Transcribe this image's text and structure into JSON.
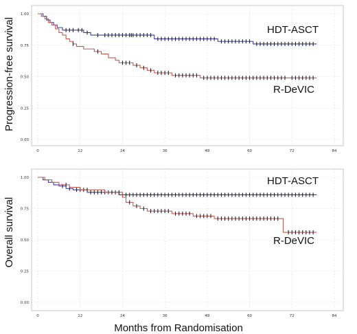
{
  "chart_data": [
    {
      "type": "line",
      "ylabel": "Progression-free survival",
      "xlabel": "",
      "xlim": [
        0,
        84
      ],
      "ylim": [
        0,
        1
      ],
      "x_ticks": [
        "0",
        "12",
        "24",
        "36",
        "48",
        "60",
        "72",
        "84"
      ],
      "y_ticks": [
        "0.00",
        "0.25",
        "0.50",
        "0.75",
        "1.00"
      ],
      "grid": true,
      "series": [
        {
          "name": "HDT-ASCT",
          "color": "#3b3b9a",
          "steps": [
            [
              0,
              1.0
            ],
            [
              1.5,
              0.98
            ],
            [
              2.5,
              0.95
            ],
            [
              3.5,
              0.93
            ],
            [
              4.5,
              0.91
            ],
            [
              5.5,
              0.89
            ],
            [
              7,
              0.87
            ],
            [
              13,
              0.85
            ],
            [
              15,
              0.83
            ],
            [
              33,
              0.8
            ],
            [
              51,
              0.78
            ],
            [
              61,
              0.76
            ],
            [
              79,
              0.76
            ]
          ],
          "censor": [
            8,
            9,
            10,
            11.5,
            12.5,
            14,
            17,
            19,
            20,
            21,
            22,
            23,
            24,
            25,
            26,
            26.5,
            27,
            28,
            29,
            30,
            31,
            32,
            34,
            35,
            36,
            37,
            38,
            39,
            40,
            41,
            42,
            43,
            44,
            45,
            46,
            47,
            48,
            49,
            50,
            52,
            53,
            54,
            55,
            56,
            57,
            58,
            59,
            60,
            62,
            63,
            64,
            65,
            66,
            67,
            68,
            69,
            70,
            71,
            72,
            73,
            74,
            75,
            76,
            77,
            78
          ]
        },
        {
          "name": "R-DeVIC",
          "color": "#c25a4e",
          "steps": [
            [
              0,
              1.0
            ],
            [
              1,
              0.98
            ],
            [
              2,
              0.96
            ],
            [
              3,
              0.93
            ],
            [
              4,
              0.91
            ],
            [
              5,
              0.88
            ],
            [
              6,
              0.85
            ],
            [
              7,
              0.83
            ],
            [
              8,
              0.8
            ],
            [
              9,
              0.78
            ],
            [
              10,
              0.76
            ],
            [
              11,
              0.74
            ],
            [
              13,
              0.72
            ],
            [
              16,
              0.7
            ],
            [
              18,
              0.68
            ],
            [
              20,
              0.65
            ],
            [
              22,
              0.63
            ],
            [
              23,
              0.61
            ],
            [
              27,
              0.59
            ],
            [
              29,
              0.57
            ],
            [
              31,
              0.55
            ],
            [
              33,
              0.53
            ],
            [
              38,
              0.51
            ],
            [
              46,
              0.49
            ],
            [
              79,
              0.49
            ]
          ],
          "censor": [
            10,
            17,
            24,
            25,
            26,
            28,
            30,
            32,
            34,
            35,
            36,
            37,
            39,
            40,
            41,
            42,
            43,
            44,
            45,
            47,
            48,
            49,
            50,
            51,
            52,
            53,
            54,
            55,
            56,
            57,
            58,
            59,
            60,
            61,
            62,
            63,
            64,
            65,
            66,
            67,
            68,
            69,
            70,
            72,
            73,
            74,
            75,
            76,
            77,
            78
          ]
        }
      ]
    },
    {
      "type": "line",
      "ylabel": "Overall survival",
      "xlabel": "Months from Randomisation",
      "xlim": [
        0,
        84
      ],
      "ylim": [
        0,
        1
      ],
      "x_ticks": [
        "0",
        "12",
        "24",
        "36",
        "48",
        "60",
        "72",
        "84"
      ],
      "y_ticks": [
        "0.00",
        "0.25",
        "0.50",
        "0.75",
        "1.00"
      ],
      "grid": true,
      "series": [
        {
          "name": "HDT-ASCT",
          "color": "#3b3b9a",
          "steps": [
            [
              0,
              1.0
            ],
            [
              1.5,
              0.98
            ],
            [
              3,
              0.96
            ],
            [
              4.5,
              0.94
            ],
            [
              6,
              0.93
            ],
            [
              8,
              0.91
            ],
            [
              10,
              0.9
            ],
            [
              14,
              0.88
            ],
            [
              23,
              0.86
            ],
            [
              79,
              0.86
            ]
          ],
          "censor": [
            7,
            9,
            11,
            12,
            13,
            15,
            16,
            17,
            18,
            19,
            20,
            21,
            22,
            24,
            25,
            26,
            27,
            28,
            29,
            30,
            31,
            32,
            33,
            34,
            35,
            36,
            37,
            38,
            39,
            40,
            41,
            42,
            43,
            44,
            45,
            46,
            47,
            48,
            49,
            50,
            51,
            52,
            53,
            54,
            55,
            56,
            57,
            58,
            59,
            60,
            61,
            62,
            63,
            64,
            65,
            66,
            67,
            68,
            69,
            70,
            71,
            72,
            73,
            74,
            75,
            76,
            77,
            78
          ]
        },
        {
          "name": "R-DeVIC",
          "color": "#c25a4e",
          "steps": [
            [
              0,
              1.0
            ],
            [
              2,
              0.98
            ],
            [
              4,
              0.96
            ],
            [
              6,
              0.94
            ],
            [
              9,
              0.92
            ],
            [
              12,
              0.9
            ],
            [
              19,
              0.88
            ],
            [
              24,
              0.84
            ],
            [
              25,
              0.8
            ],
            [
              27,
              0.77
            ],
            [
              29,
              0.75
            ],
            [
              31,
              0.73
            ],
            [
              38,
              0.71
            ],
            [
              44,
              0.69
            ],
            [
              50,
              0.67
            ],
            [
              69.5,
              0.56
            ],
            [
              79,
              0.56
            ]
          ],
          "censor": [
            8,
            14,
            21,
            23,
            26,
            28,
            30,
            32,
            33,
            34,
            35,
            36,
            37,
            39,
            40,
            41,
            42,
            43,
            45,
            46,
            47,
            48,
            49,
            51,
            52,
            53,
            54,
            55,
            56,
            57,
            58,
            59,
            60,
            61,
            62,
            63,
            64,
            65,
            66,
            67,
            68,
            71,
            72,
            73,
            74,
            75,
            76,
            77,
            78
          ]
        }
      ]
    }
  ]
}
